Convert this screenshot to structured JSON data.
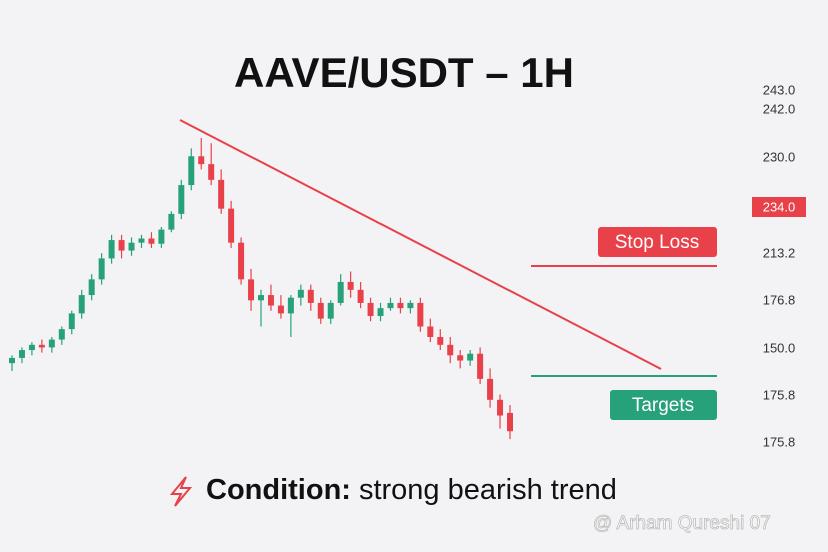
{
  "chart_data": {
    "type": "candlestick",
    "title": "AAVE/USDT – 1H",
    "ylim": [
      170.6,
      252.7
    ],
    "up_color": "#27a17a",
    "down_color": "#e8414a",
    "open": [
      191.0,
      192.0,
      193.5,
      194.5,
      194.0,
      195.5,
      197.5,
      200.5,
      204.0,
      207.0,
      211.0,
      214.5,
      212.5,
      214.0,
      214.8,
      213.8,
      216.5,
      219.5,
      225.0,
      230.5,
      229.0,
      226.0,
      220.5,
      214.0,
      207.0,
      203.0,
      204.0,
      202.0,
      200.5,
      203.5,
      205.0,
      202.5,
      199.5,
      202.5,
      206.5,
      205.0,
      202.5,
      200.0,
      201.5,
      202.5,
      201.5,
      202.5,
      198.0,
      196.0,
      194.5,
      192.5,
      191.5,
      192.8,
      188.0,
      184.0,
      181.5
    ],
    "high": [
      192.5,
      194.0,
      195.0,
      195.5,
      196.0,
      198.0,
      201.0,
      205.0,
      208.0,
      212.0,
      215.5,
      215.5,
      215.0,
      215.5,
      216.0,
      217.0,
      220.0,
      226.0,
      232.0,
      234.0,
      233.0,
      228.0,
      222.0,
      215.0,
      209.0,
      205.0,
      206.0,
      204.0,
      204.0,
      206.0,
      206.0,
      203.5,
      203.0,
      208.0,
      208.5,
      206.5,
      203.5,
      202.5,
      203.5,
      203.5,
      203.0,
      203.5,
      199.5,
      197.5,
      196.0,
      193.5,
      193.5,
      194.0,
      190.0,
      185.0,
      183.0
    ],
    "low": [
      189.5,
      191.0,
      192.5,
      193.0,
      193.0,
      194.5,
      196.5,
      199.5,
      203.0,
      206.0,
      210.0,
      211.0,
      211.5,
      213.0,
      213.0,
      213.0,
      216.0,
      218.5,
      224.0,
      228.0,
      225.0,
      219.5,
      213.0,
      206.0,
      201.0,
      198.0,
      201.0,
      199.5,
      196.0,
      202.0,
      201.0,
      198.5,
      198.5,
      202.0,
      203.5,
      201.5,
      199.0,
      199.0,
      201.0,
      200.5,
      200.5,
      197.0,
      195.0,
      193.5,
      191.0,
      190.0,
      190.5,
      187.0,
      182.5,
      178.5,
      176.5
    ],
    "close": [
      192.0,
      193.5,
      194.5,
      194.0,
      195.5,
      197.5,
      200.5,
      204.0,
      207.0,
      211.0,
      214.5,
      212.5,
      214.0,
      214.8,
      213.8,
      216.5,
      219.5,
      225.0,
      230.5,
      229.0,
      226.0,
      220.5,
      214.0,
      207.0,
      203.0,
      204.0,
      202.0,
      200.5,
      203.5,
      205.0,
      202.5,
      199.5,
      202.5,
      206.5,
      205.0,
      202.5,
      200.0,
      201.5,
      202.5,
      201.5,
      202.5,
      198.0,
      196.0,
      194.5,
      192.5,
      191.5,
      192.8,
      188.0,
      184.0,
      181.0,
      178.0
    ],
    "price_labels": [
      "243.0",
      "242.0",
      "230.0",
      "213.2",
      "176.8",
      "150.0",
      "175.8",
      "175.8"
    ],
    "current_price_label": "234.0",
    "stop_loss_label": "Stop Loss",
    "targets_label": "Targets",
    "condition_label": "Condition:",
    "condition_text": "strong bearish trend",
    "watermark": "@ Arham Qureshi 07"
  }
}
